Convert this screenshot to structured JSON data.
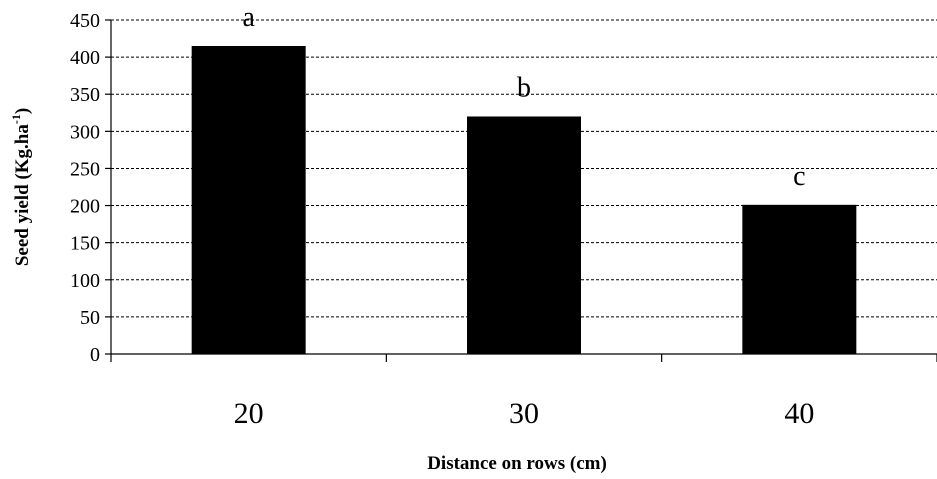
{
  "chart_data": {
    "type": "bar",
    "categories": [
      "20",
      "30",
      "40"
    ],
    "values": [
      415,
      320,
      201
    ],
    "significance_letters": [
      "a",
      "b",
      "c"
    ],
    "xlabel": "Distance on rows (cm)",
    "ylabel": "Seed yield (Kg.ha",
    "ylabel_superscript": "-1",
    "ylabel_suffix": ")",
    "ylim": [
      0,
      450
    ],
    "yticks": [
      "0",
      "50",
      "100",
      "150",
      "200",
      "250",
      "300",
      "350",
      "400",
      "450"
    ],
    "grid": true,
    "bar_color": "#000000"
  }
}
